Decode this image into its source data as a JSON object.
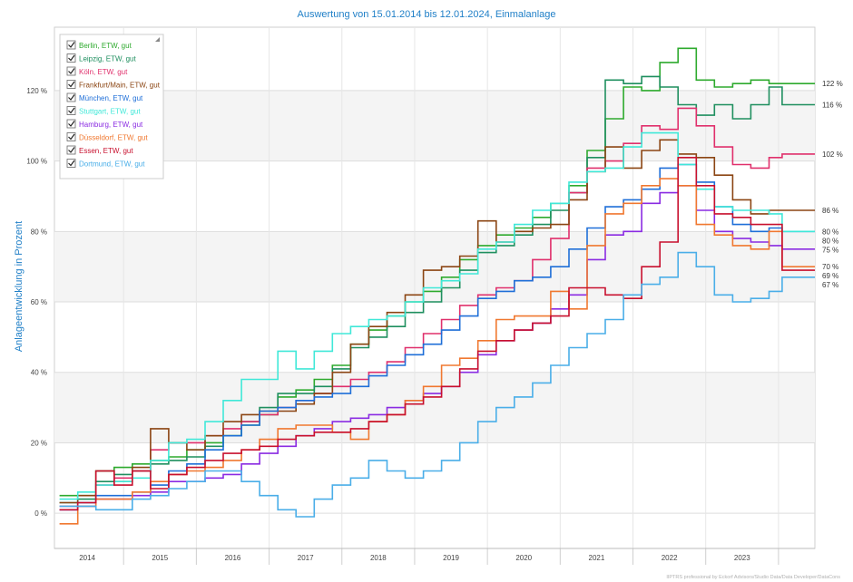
{
  "chart_data": {
    "type": "line",
    "step": true,
    "title": "Auswertung von 15.01.2014 bis 12.01.2024, Einmalanlage",
    "xlabel": "",
    "ylabel": "Anlageentwicklung  in Prozent",
    "xlim": [
      2013.55,
      2024.0
    ],
    "ylim": [
      -10,
      138
    ],
    "x_ticks": [
      2014,
      2015,
      2016,
      2017,
      2018,
      2019,
      2020,
      2021,
      2022,
      2023
    ],
    "y_ticks": [
      0,
      20,
      40,
      60,
      80,
      100,
      120
    ],
    "y_tick_labels": [
      "0 %",
      "20 %",
      "40 %",
      "60 %",
      "80 %",
      "100 %",
      "120 %"
    ],
    "grid": true,
    "legend_position": "top-left",
    "x": [
      2013.62,
      2013.87,
      2014.12,
      2014.37,
      2014.62,
      2014.87,
      2015.12,
      2015.37,
      2015.62,
      2015.87,
      2016.12,
      2016.37,
      2016.62,
      2016.87,
      2017.12,
      2017.37,
      2017.62,
      2017.87,
      2018.12,
      2018.37,
      2018.62,
      2018.87,
      2019.12,
      2019.37,
      2019.62,
      2019.87,
      2020.12,
      2020.37,
      2020.62,
      2020.87,
      2021.12,
      2021.37,
      2021.62,
      2021.87,
      2022.12,
      2022.37,
      2022.62,
      2022.87,
      2023.12,
      2023.37,
      2023.55
    ],
    "series": [
      {
        "name": "Berlin, ETW, gut",
        "color": "#2eaa2e",
        "end_label": "122 %",
        "values": [
          5,
          5,
          12,
          13,
          14,
          15,
          16,
          18,
          20,
          22,
          25,
          28,
          33,
          35,
          38,
          42,
          48,
          52,
          56,
          60,
          63,
          67,
          72,
          76,
          79,
          81,
          84,
          88,
          93,
          103,
          112,
          121,
          120,
          128,
          132,
          123,
          121,
          122,
          123,
          122,
          122
        ]
      },
      {
        "name": "Leipzig, ETW, gut",
        "color": "#1f8f5f",
        "end_label": "116 %",
        "values": [
          3,
          4,
          9,
          11,
          12,
          14,
          15,
          16,
          19,
          22,
          26,
          30,
          34,
          34,
          36,
          41,
          47,
          50,
          53,
          57,
          60,
          64,
          69,
          74,
          76,
          79,
          82,
          86,
          91,
          101,
          123,
          122,
          124,
          121,
          116,
          113,
          116,
          112,
          116,
          121,
          116
        ]
      },
      {
        "name": "Köln, ETW, gut",
        "color": "#e0306c",
        "end_label": "102 %",
        "values": [
          2,
          3,
          8,
          10,
          12,
          18,
          20,
          20,
          22,
          24,
          26,
          28,
          30,
          32,
          34,
          36,
          38,
          40,
          43,
          47,
          51,
          55,
          59,
          62,
          64,
          66,
          72,
          78,
          91,
          98,
          100,
          105,
          110,
          109,
          115,
          110,
          104,
          99,
          98,
          101,
          102
        ]
      },
      {
        "name": "Frankfurt/Main, ETW, gut",
        "color": "#8b4513",
        "end_label": "86 %",
        "values": [
          3,
          5,
          12,
          9,
          13,
          24,
          20,
          18,
          22,
          26,
          28,
          29,
          29,
          31,
          34,
          40,
          48,
          53,
          57,
          62,
          69,
          70,
          73,
          83,
          77,
          80,
          81,
          82,
          89,
          97,
          104,
          98,
          103,
          106,
          102,
          101,
          96,
          89,
          85,
          86,
          86
        ]
      },
      {
        "name": "München, ETW, gut",
        "color": "#1f6fd8",
        "end_label": "80 %",
        "values": [
          1,
          3,
          5,
          5,
          6,
          8,
          12,
          14,
          18,
          22,
          25,
          29,
          30,
          32,
          33,
          34,
          36,
          39,
          42,
          45,
          48,
          52,
          56,
          61,
          63,
          66,
          67,
          70,
          75,
          81,
          87,
          89,
          92,
          98,
          99,
          94,
          87,
          82,
          80,
          81,
          80
        ]
      },
      {
        "name": "Stuttgart, ETW, gut",
        "color": "#40e8d8",
        "end_label": "80 %",
        "values": [
          4,
          6,
          8,
          9,
          10,
          15,
          20,
          21,
          26,
          32,
          38,
          38,
          46,
          41,
          46,
          51,
          53,
          55,
          56,
          60,
          64,
          66,
          68,
          75,
          77,
          82,
          86,
          88,
          94,
          97,
          98,
          104,
          108,
          108,
          99,
          92,
          87,
          86,
          86,
          85,
          80
        ]
      },
      {
        "name": "Hamburg, ETW, gut",
        "color": "#8a2be2",
        "end_label": "75 %",
        "values": [
          1,
          2,
          4,
          4,
          5,
          6,
          9,
          9,
          10,
          11,
          14,
          17,
          19,
          22,
          24,
          26,
          27,
          28,
          30,
          32,
          34,
          36,
          40,
          45,
          49,
          52,
          54,
          58,
          62,
          72,
          79,
          80,
          88,
          91,
          93,
          86,
          80,
          78,
          77,
          76,
          75
        ]
      },
      {
        "name": "Düsseldorf, ETW, gut",
        "color": "#f07830",
        "end_label": "70 %",
        "values": [
          -3,
          2,
          4,
          4,
          6,
          9,
          11,
          12,
          13,
          15,
          18,
          21,
          24,
          25,
          25,
          23,
          21,
          26,
          28,
          32,
          36,
          42,
          44,
          49,
          55,
          56,
          56,
          63,
          58,
          76,
          85,
          88,
          93,
          95,
          93,
          82,
          79,
          76,
          75,
          80,
          70
        ]
      },
      {
        "name": "Essen, ETW, gut",
        "color": "#c8102e",
        "end_label": "69 %",
        "values": [
          1,
          3,
          12,
          8,
          12,
          7,
          11,
          13,
          15,
          17,
          18,
          19,
          21,
          22,
          23,
          23,
          24,
          26,
          28,
          31,
          33,
          36,
          41,
          46,
          49,
          52,
          54,
          56,
          64,
          64,
          62,
          61,
          70,
          77,
          101,
          93,
          85,
          84,
          82,
          82,
          69
        ]
      },
      {
        "name": "Dortmund, ETW, gut",
        "color": "#4aaee8",
        "end_label": "67 %",
        "values": [
          2,
          2,
          1,
          1,
          4,
          5,
          7,
          9,
          12,
          12,
          9,
          5,
          1,
          -1,
          4,
          8,
          10,
          15,
          12,
          10,
          12,
          15,
          20,
          26,
          30,
          33,
          37,
          42,
          47,
          51,
          55,
          62,
          65,
          67,
          74,
          70,
          62,
          60,
          61,
          63,
          67
        ]
      }
    ]
  },
  "footer": {
    "credit": "IIPTRS professional by Eckorf Advisors/Studio Data/Data Developer/DataCons"
  }
}
